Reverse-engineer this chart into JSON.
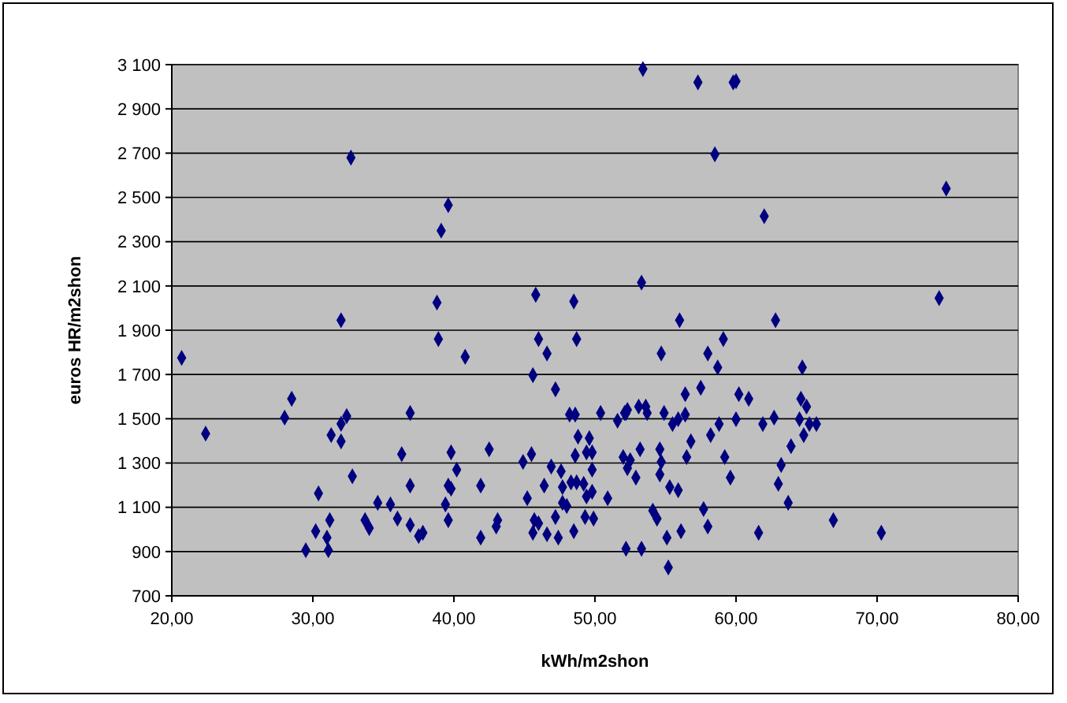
{
  "chart_data": {
    "type": "scatter",
    "xlabel": "kWh/m2shon",
    "ylabel": "euros HR/m2shon",
    "color": "#000080",
    "marker": "diamond",
    "grid": "y",
    "xlim": [
      20,
      80
    ],
    "xticks": [
      {
        "value": 20,
        "label": "20,00"
      },
      {
        "value": 30,
        "label": "30,00"
      },
      {
        "value": 40,
        "label": "40,00"
      },
      {
        "value": 50,
        "label": "50,00"
      },
      {
        "value": 60,
        "label": "60,00"
      },
      {
        "value": 70,
        "label": "70,00"
      },
      {
        "value": 80,
        "label": "80,00"
      }
    ],
    "ylim": [
      700,
      3100
    ],
    "yticks": [
      {
        "value": 700,
        "label": "700"
      },
      {
        "value": 900,
        "label": "900"
      },
      {
        "value": 1100,
        "label": "1 100"
      },
      {
        "value": 1300,
        "label": "1 300"
      },
      {
        "value": 1500,
        "label": "1 500"
      },
      {
        "value": 1700,
        "label": "1 700"
      },
      {
        "value": 1900,
        "label": "1 900"
      },
      {
        "value": 2100,
        "label": "2 100"
      },
      {
        "value": 2300,
        "label": "2 300"
      },
      {
        "value": 2500,
        "label": "2 500"
      },
      {
        "value": 2700,
        "label": "2 700"
      },
      {
        "value": 2900,
        "label": "2 900"
      },
      {
        "value": 3100,
        "label": "3 100"
      }
    ],
    "x": [
      53.4,
      57.3,
      59.8,
      60.0,
      58.5,
      74.9,
      62.0,
      32.7,
      39.6,
      39.1,
      38.8,
      38.9,
      32.0,
      40.8,
      45.8,
      46.0,
      46.6,
      48.5,
      48.7,
      20.7,
      53.3,
      56.0,
      62.8,
      74.4,
      59.1,
      54.7,
      58.0,
      45.6,
      47.2,
      22.4,
      28.5,
      28.0,
      32.4,
      32.0,
      31.3,
      32.0,
      36.9,
      36.3,
      32.8,
      30.4,
      30.2,
      31.2,
      31.0,
      31.1,
      29.5,
      34.6,
      35.5,
      33.7,
      34.0,
      36.0,
      36.9,
      36.9,
      37.8,
      37.5,
      39.8,
      40.2,
      39.6,
      39.8,
      39.4,
      39.6,
      42.5,
      41.9,
      43.1,
      43.0,
      41.9,
      44.9,
      45.5,
      45.2,
      45.7,
      46.0,
      45.6,
      46.6,
      47.4,
      46.9,
      46.4,
      47.6,
      47.2,
      48.2,
      48.6,
      48.8,
      49.6,
      48.6,
      49.4,
      49.8,
      49.8,
      47.7,
      48.3,
      48.7,
      49.2,
      47.7,
      48.0,
      49.4,
      49.8,
      49.3,
      49.9,
      48.5,
      50.9,
      50.4,
      51.6,
      52.1,
      52.3,
      52.0,
      52.3,
      52.2,
      58.7,
      64.7,
      57.5,
      56.4,
      60.2,
      60.9,
      64.6,
      65.0,
      52.2,
      53.1,
      53.6,
      53.7,
      54.9,
      55.5,
      55.9,
      56.4,
      58.8,
      60.0,
      61.9,
      62.7,
      64.5,
      65.2,
      65.7,
      64.8,
      56.8,
      58.2,
      63.9,
      53.2,
      54.6,
      52.5,
      52.9,
      54.7,
      54.6,
      56.5,
      59.2,
      59.6,
      63.2,
      63.0,
      55.3,
      55.9,
      63.7,
      54.1,
      54.4,
      57.7,
      58.0,
      56.1,
      55.1,
      61.6,
      66.9,
      70.3,
      53.3,
      55.2
    ],
    "values": [
      3080,
      3020,
      3020,
      3025,
      2695,
      2540,
      2415,
      2680,
      2465,
      2350,
      2025,
      1860,
      1945,
      1780,
      2060,
      1860,
      1795,
      2030,
      1860,
      1775,
      2115,
      1945,
      1945,
      2045,
      1860,
      1795,
      1795,
      1697,
      1633,
      1433,
      1590,
      1505,
      1512,
      1477,
      1426,
      1398,
      1526,
      1340,
      1240,
      1163,
      992,
      1042,
      963,
      906,
      906,
      1120,
      1113,
      1042,
      1006,
      1049,
      1198,
      1020,
      985,
      970,
      1348,
      1270,
      1198,
      1184,
      1113,
      1042,
      1362,
      1198,
      1042,
      1013,
      963,
      1305,
      1340,
      1141,
      1042,
      1028,
      985,
      978,
      963,
      1284,
      1198,
      1263,
      1056,
      1519,
      1519,
      1419,
      1412,
      1334,
      1348,
      1348,
      1270,
      1191,
      1213,
      1213,
      1206,
      1120,
      1106,
      1149,
      1170,
      1056,
      1049,
      992,
      1141,
      1526,
      1491,
      1526,
      1540,
      1327,
      1277,
      913,
      1732,
      1732,
      1640,
      1611,
      1611,
      1590,
      1590,
      1555,
      1526,
      1555,
      1555,
      1526,
      1526,
      1476,
      1498,
      1519,
      1476,
      1498,
      1476,
      1505,
      1498,
      1476,
      1476,
      1426,
      1398,
      1426,
      1376,
      1362,
      1362,
      1313,
      1234,
      1305,
      1248,
      1327,
      1327,
      1234,
      1291,
      1206,
      1191,
      1177,
      1120,
      1085,
      1049,
      1092,
      1013,
      992,
      963,
      985,
      1042,
      985,
      913,
      828
    ]
  }
}
